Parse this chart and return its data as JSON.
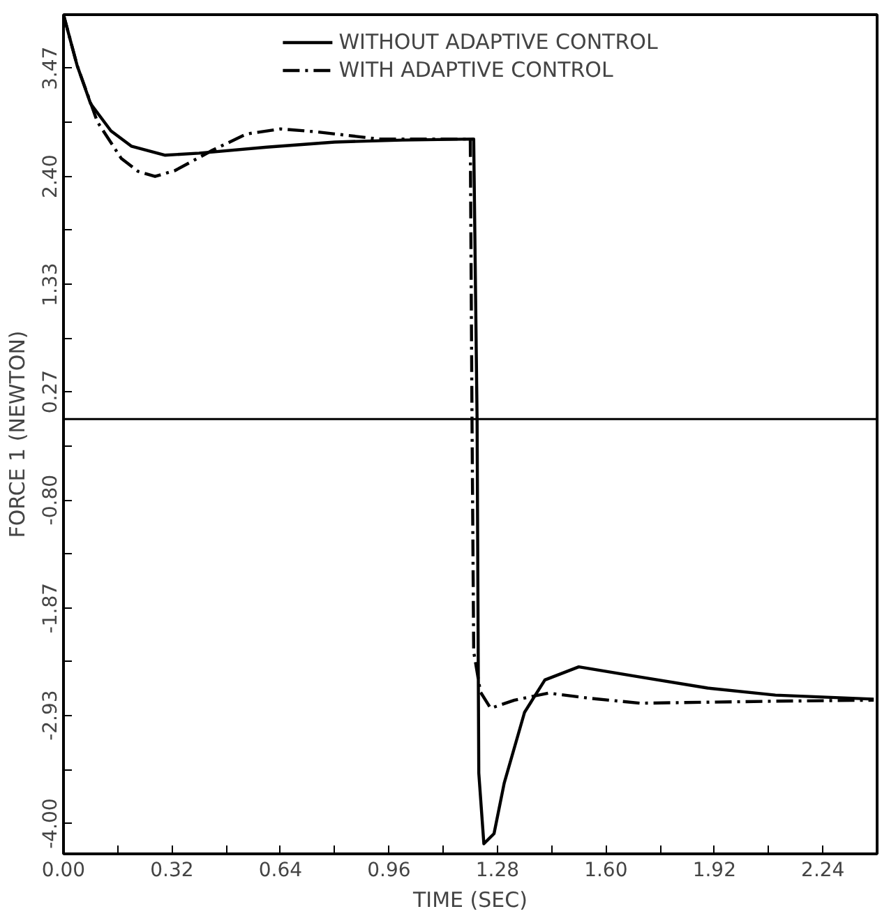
{
  "chart_data": {
    "type": "line",
    "xlabel": "TIME (SEC)",
    "ylabel": "FORCE 1 (NEWTON)",
    "xlim": [
      0,
      2.4
    ],
    "ylim": [
      -4.3,
      4.0
    ],
    "xticks": [
      {
        "value": 0,
        "label": "0.00"
      },
      0.32,
      0.64,
      0.96,
      1.28,
      {
        "value": 1.6,
        "label": "1.60"
      },
      1.92,
      2.24,
      {
        "value": 0.16,
        "label": null
      },
      {
        "value": 0.48,
        "label": null
      },
      {
        "value": 0.8,
        "label": null
      },
      {
        "value": 1.12,
        "label": null
      },
      {
        "value": 1.44,
        "label": null
      },
      {
        "value": 1.76,
        "label": null
      },
      {
        "value": 2.08,
        "label": null
      }
    ],
    "yticks": [
      {
        "value": -4,
        "label": "-4.00"
      },
      -2.93,
      -1.87,
      {
        "value": -0.8,
        "label": "-0.80"
      },
      0.27,
      1.33,
      {
        "value": 2.4,
        "label": "2.40"
      },
      3.47,
      {
        "value": -3.47,
        "label": null
      },
      {
        "value": -2.4,
        "label": null
      },
      {
        "value": -1.33,
        "label": null
      },
      {
        "value": -0.27,
        "label": null
      },
      {
        "value": 0.8,
        "label": null
      },
      {
        "value": 1.87,
        "label": null
      },
      {
        "value": 2.93,
        "label": null
      }
    ],
    "ref_lines": [
      {
        "axis": "y",
        "value": 0,
        "label": null
      }
    ],
    "legend": "top",
    "grid": false,
    "series": [
      {
        "name": "WITHOUT ADAPTIVE CONTROL",
        "color": "#000000",
        "line_style": "solid",
        "x": [
          0,
          0.04,
          0.08,
          0.14,
          0.2,
          0.3,
          0.4,
          0.6,
          0.8,
          1.0,
          1.21,
          1.22,
          1.225,
          1.24,
          1.27,
          1.3,
          1.36,
          1.42,
          1.52,
          1.7,
          1.9,
          2.1,
          2.39
        ],
        "values": [
          4.0,
          3.5,
          3.12,
          2.85,
          2.7,
          2.61,
          2.63,
          2.69,
          2.74,
          2.76,
          2.77,
          0,
          -3.5,
          -4.2,
          -4.1,
          -3.6,
          -2.9,
          -2.58,
          -2.45,
          -2.55,
          -2.66,
          -2.73,
          -2.77
        ]
      },
      {
        "name": "WITH ADAPTIVE CONTROL",
        "color": "#000000",
        "line_style": "dashdot",
        "x": [
          0,
          0.04,
          0.1,
          0.17,
          0.22,
          0.27,
          0.33,
          0.44,
          0.54,
          0.64,
          0.75,
          0.93,
          1.2,
          1.205,
          1.21,
          1.23,
          1.26,
          1.33,
          1.43,
          1.55,
          1.7,
          1.9,
          2.1,
          2.39
        ],
        "values": [
          4.0,
          3.5,
          2.94,
          2.58,
          2.45,
          2.4,
          2.46,
          2.66,
          2.82,
          2.87,
          2.84,
          2.77,
          2.77,
          0,
          -2.3,
          -2.7,
          -2.86,
          -2.78,
          -2.71,
          -2.76,
          -2.81,
          -2.8,
          -2.79,
          -2.78
        ]
      }
    ]
  }
}
